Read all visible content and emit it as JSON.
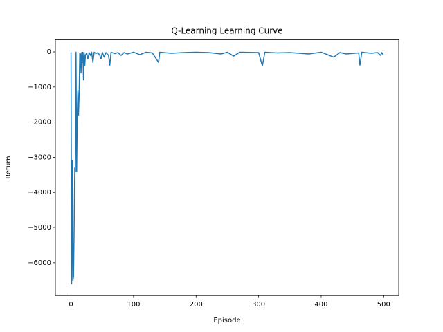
{
  "chart_data": {
    "type": "line",
    "title": "Q-Learning Learning Curve",
    "xlabel": "Episode",
    "ylabel": "Return",
    "x": [
      0,
      1,
      2,
      3,
      4,
      5,
      6,
      7,
      8,
      9,
      10,
      11,
      12,
      13,
      14,
      15,
      16,
      17,
      18,
      19,
      20,
      21,
      22,
      23,
      25,
      27,
      29,
      31,
      33,
      35,
      37,
      40,
      43,
      46,
      48,
      50,
      53,
      56,
      60,
      62,
      64,
      70,
      75,
      80,
      85,
      90,
      100,
      110,
      120,
      130,
      140,
      142,
      160,
      180,
      200,
      220,
      240,
      250,
      260,
      270,
      300,
      306,
      310,
      330,
      350,
      380,
      400,
      420,
      430,
      440,
      460,
      462,
      465,
      480,
      490,
      495,
      497,
      499
    ],
    "series": [
      {
        "name": "Return",
        "color": "#1f77b4",
        "values": [
          -10,
          -6600,
          -3100,
          -6500,
          -6400,
          -5000,
          -3300,
          -3400,
          -10,
          -3400,
          -1800,
          -1100,
          -1800,
          -1200,
          -30,
          -50,
          -600,
          -20,
          -300,
          -10,
          -800,
          -20,
          -400,
          -100,
          -30,
          -200,
          -20,
          -100,
          -10,
          -300,
          -10,
          -50,
          -20,
          -100,
          -200,
          -10,
          -150,
          -20,
          -100,
          -380,
          -10,
          -50,
          -20,
          -100,
          -20,
          -60,
          -10,
          -80,
          -10,
          -30,
          -300,
          -10,
          -40,
          -20,
          -10,
          -20,
          -60,
          -10,
          -120,
          -10,
          -20,
          -400,
          -10,
          -30,
          -20,
          -60,
          -10,
          -150,
          -20,
          -60,
          -30,
          -380,
          -10,
          -40,
          -20,
          -100,
          -20,
          -80
        ]
      }
    ],
    "xlim": [
      -25,
      524
    ],
    "ylim": [
      -6932,
      342
    ],
    "xticks": [
      0,
      100,
      200,
      300,
      400,
      500
    ],
    "yticks": [
      {
        "value": -6000,
        "label": "−6000"
      },
      {
        "value": -5000,
        "label": "−5000"
      },
      {
        "value": -4000,
        "label": "−4000"
      },
      {
        "value": -3000,
        "label": "−3000"
      },
      {
        "value": -2000,
        "label": "−2000"
      },
      {
        "value": -1000,
        "label": "−1000"
      },
      0
    ]
  }
}
